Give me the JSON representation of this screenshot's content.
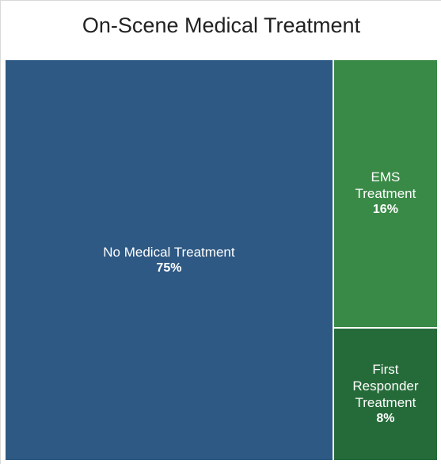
{
  "chart_data": {
    "type": "treemap",
    "title": "On-Scene Medical Treatment",
    "categories": [
      "No Medical Treatment",
      "EMS Treatment",
      "First Responder Treatment"
    ],
    "values": [
      75,
      16,
      8
    ],
    "value_labels": [
      "75%",
      "16%",
      "8%"
    ],
    "colors": [
      "#2e5984",
      "#3a8a47",
      "#256b39"
    ]
  }
}
